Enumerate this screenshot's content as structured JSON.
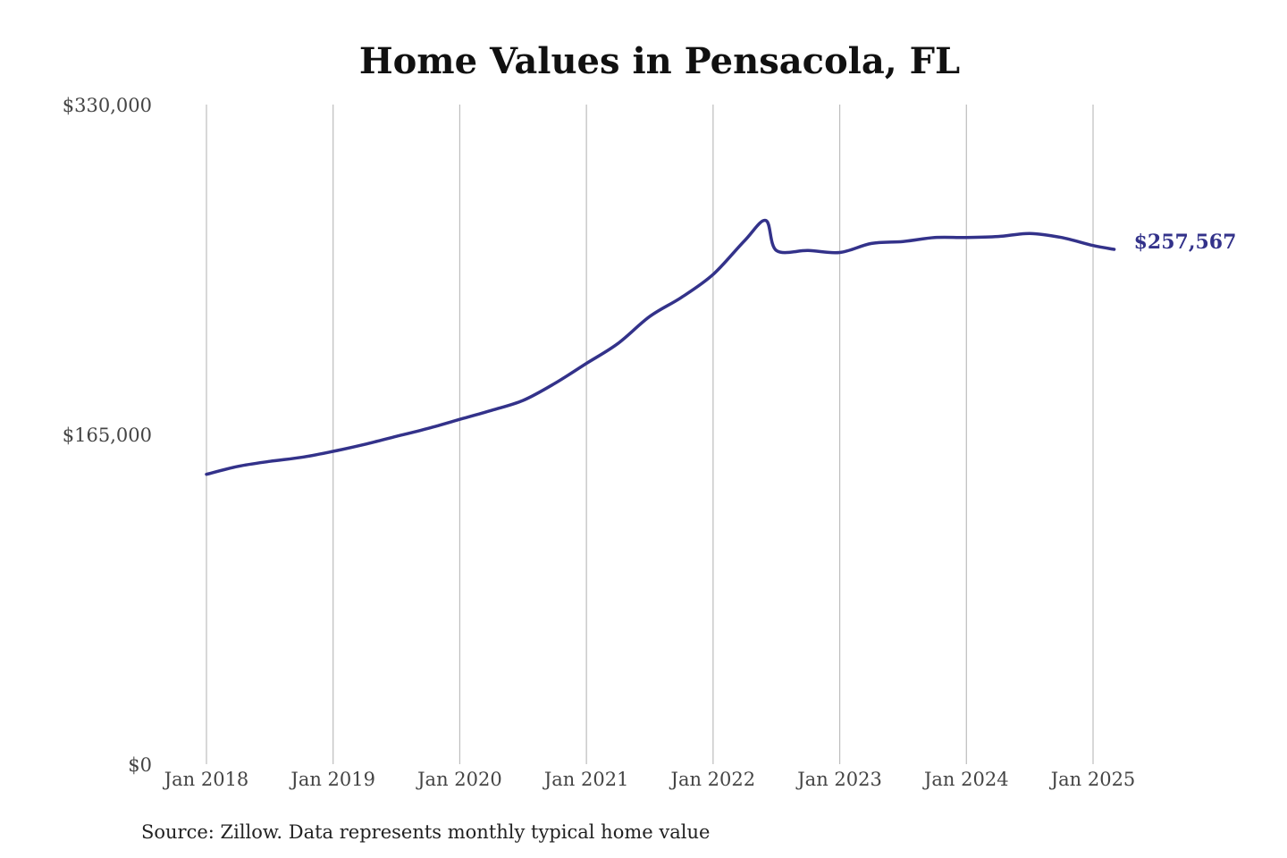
{
  "chart_data": {
    "type": "line",
    "title": "Home Values in Pensacola, FL",
    "source": "Source: Zillow. Data represents monthly typical home value",
    "ylim": [
      0,
      330000
    ],
    "y_ticks": [
      {
        "value": 0,
        "label": "$0"
      },
      {
        "value": 165000,
        "label": "$165,000"
      },
      {
        "value": 330000,
        "label": "$330,000"
      }
    ],
    "x_ticks": [
      {
        "value": "2018-01",
        "label": "Jan 2018"
      },
      {
        "value": "2019-01",
        "label": "Jan 2019"
      },
      {
        "value": "2020-01",
        "label": "Jan 2020"
      },
      {
        "value": "2021-01",
        "label": "Jan 2021"
      },
      {
        "value": "2022-01",
        "label": "Jan 2022"
      },
      {
        "value": "2023-01",
        "label": "Jan 2023"
      },
      {
        "value": "2024-01",
        "label": "Jan 2024"
      },
      {
        "value": "2025-01",
        "label": "Jan 2025"
      }
    ],
    "grid": {
      "vertical": true,
      "horizontal": false
    },
    "end_label": "$257,567",
    "colors": {
      "line": "#33328a",
      "grid": "#bdbdbd"
    },
    "series": [
      {
        "points": [
          {
            "x": "2018-01",
            "y": 145000
          },
          {
            "x": "2018-04",
            "y": 149000
          },
          {
            "x": "2018-07",
            "y": 151500
          },
          {
            "x": "2018-10",
            "y": 153500
          },
          {
            "x": "2019-01",
            "y": 156500
          },
          {
            "x": "2019-04",
            "y": 160000
          },
          {
            "x": "2019-07",
            "y": 164000
          },
          {
            "x": "2019-10",
            "y": 168000
          },
          {
            "x": "2020-01",
            "y": 172500
          },
          {
            "x": "2020-04",
            "y": 177000
          },
          {
            "x": "2020-07",
            "y": 182000
          },
          {
            "x": "2020-10",
            "y": 190500
          },
          {
            "x": "2021-01",
            "y": 200500
          },
          {
            "x": "2021-04",
            "y": 210500
          },
          {
            "x": "2021-07",
            "y": 224000
          },
          {
            "x": "2021-10",
            "y": 233500
          },
          {
            "x": "2022-01",
            "y": 245000
          },
          {
            "x": "2022-04",
            "y": 262000
          },
          {
            "x": "2022-06",
            "y": 272000
          },
          {
            "x": "2022-07",
            "y": 257000
          },
          {
            "x": "2022-10",
            "y": 257000
          },
          {
            "x": "2023-01",
            "y": 256000
          },
          {
            "x": "2023-04",
            "y": 260500
          },
          {
            "x": "2023-07",
            "y": 261500
          },
          {
            "x": "2023-10",
            "y": 263500
          },
          {
            "x": "2024-01",
            "y": 263500
          },
          {
            "x": "2024-04",
            "y": 264000
          },
          {
            "x": "2024-07",
            "y": 265500
          },
          {
            "x": "2024-10",
            "y": 263500
          },
          {
            "x": "2025-01",
            "y": 259500
          },
          {
            "x": "2025-03",
            "y": 257567
          }
        ]
      }
    ]
  }
}
